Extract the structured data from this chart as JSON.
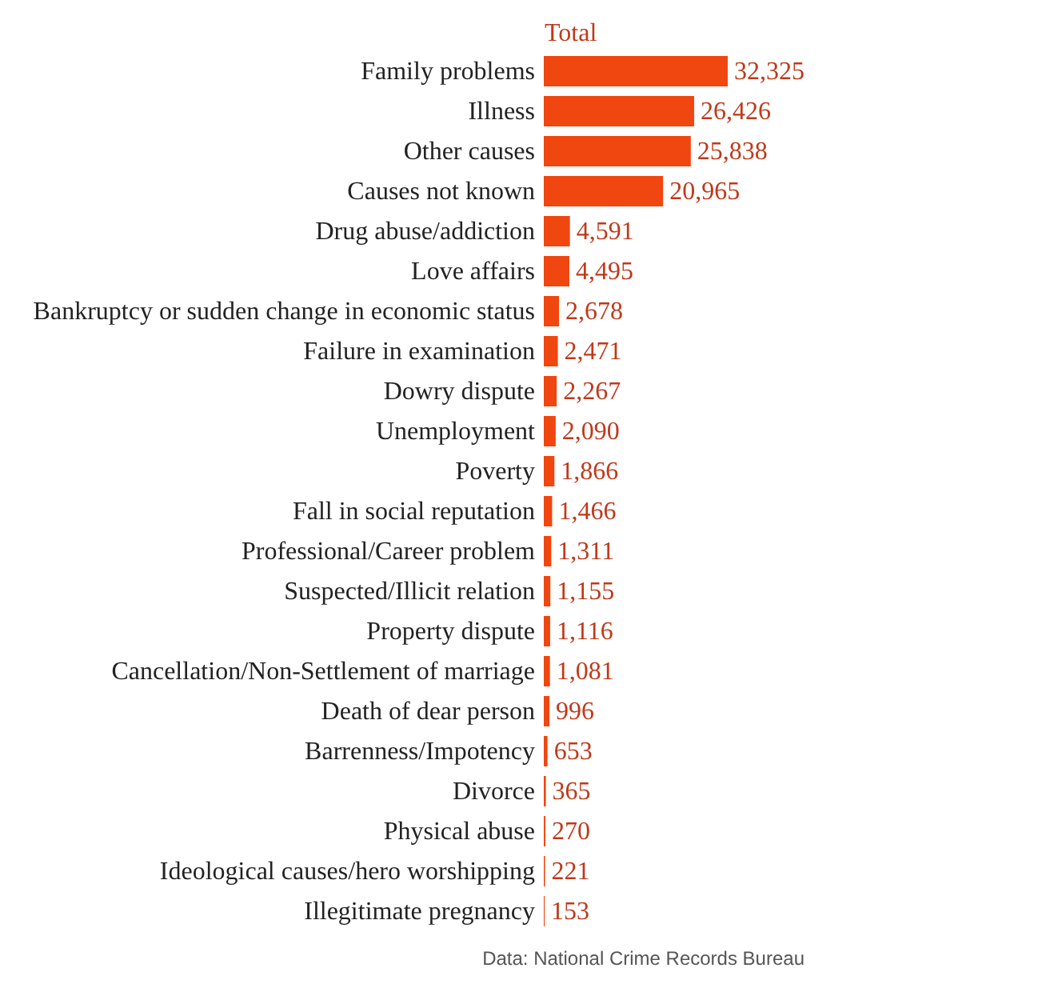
{
  "chart_data": {
    "type": "bar",
    "orientation": "horizontal",
    "xlabel": "Total",
    "tick_labels": "y",
    "categories": [
      "Family problems",
      "Illness",
      "Other causes",
      "Causes not known",
      "Drug abuse/addiction",
      "Love affairs",
      "Bankruptcy or sudden change in economic status",
      "Failure in examination",
      "Dowry dispute",
      "Unemployment",
      "Poverty",
      "Fall in social reputation",
      "Professional/Career problem",
      "Suspected/Illicit relation",
      "Property dispute",
      "Cancellation/Non-Settlement of marriage",
      "Death of dear person",
      "Barrenness/Impotency",
      "Divorce",
      "Physical abuse",
      "Ideological causes/hero worshipping",
      "Illegitimate pregnancy"
    ],
    "series": [
      {
        "color": "#f0460f",
        "values": [
          32325,
          26426,
          25838,
          20965,
          4591,
          4495,
          2678,
          2471,
          2267,
          2090,
          1866,
          1466,
          1311,
          1155,
          1116,
          1081,
          996,
          653,
          365,
          270,
          221,
          153
        ],
        "value_labels": [
          "32,325",
          "26,426",
          "25,838",
          "20,965",
          "4,591",
          "4,495",
          "2,678",
          "2,471",
          "2,267",
          "2,090",
          "1,866",
          "1,466",
          "1,311",
          "1,155",
          "1,116",
          "1,081",
          "996",
          "653",
          "365",
          "270",
          "221",
          "153"
        ]
      }
    ],
    "annotations": [
      "Data: National Crime Records Bureau"
    ]
  }
}
